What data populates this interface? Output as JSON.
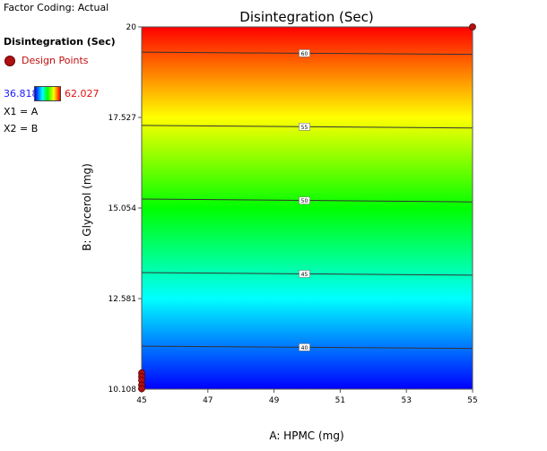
{
  "legend": {
    "factor_coding": "Factor Coding: Actual",
    "response_name": "Disintegration (Sec)",
    "design_points_label": "Design Points",
    "range_min": "36.818",
    "range_max": "62.027",
    "x1_map": "X1 = A",
    "x2_map": "X2 = B"
  },
  "chart_data": {
    "type": "heatmap",
    "subtype": "contour",
    "title": "Disintegration (Sec)",
    "xlabel": "A: HPMC (mg)",
    "ylabel": "B: Glycerol (mg)",
    "xlim": [
      45,
      55
    ],
    "ylim": [
      10.108,
      20
    ],
    "x_ticks": [
      45,
      47,
      49,
      51,
      53,
      55
    ],
    "x_tick_labels": [
      "45",
      "47",
      "49",
      "51",
      "53",
      "55"
    ],
    "y_ticks": [
      10.108,
      12.581,
      15.054,
      17.527,
      20
    ],
    "y_tick_labels": [
      "10.108",
      "12.581",
      "15.054",
      "17.527",
      "20"
    ],
    "color_range": [
      36.818,
      62.027
    ],
    "colorscale": [
      "#0000ff",
      "#00ffff",
      "#00ff00",
      "#ffff00",
      "#ff0000"
    ],
    "contours": [
      {
        "level": 40,
        "label": "40",
        "b_left": 11.28,
        "b_right": 11.22
      },
      {
        "level": 45,
        "label": "45",
        "b_left": 13.29,
        "b_right": 13.22
      },
      {
        "level": 50,
        "label": "50",
        "b_left": 15.3,
        "b_right": 15.22
      },
      {
        "level": 55,
        "label": "55",
        "b_left": 17.31,
        "b_right": 17.24
      },
      {
        "level": 60,
        "label": "60",
        "b_left": 19.31,
        "b_right": 19.25
      }
    ],
    "grid": false,
    "design_points": [
      {
        "x": 55,
        "y": 20
      },
      {
        "x": 45,
        "y": 10.55
      },
      {
        "x": 45,
        "y": 10.45
      },
      {
        "x": 45,
        "y": 10.35
      },
      {
        "x": 45,
        "y": 10.22
      },
      {
        "x": 45,
        "y": 10.12
      }
    ]
  }
}
